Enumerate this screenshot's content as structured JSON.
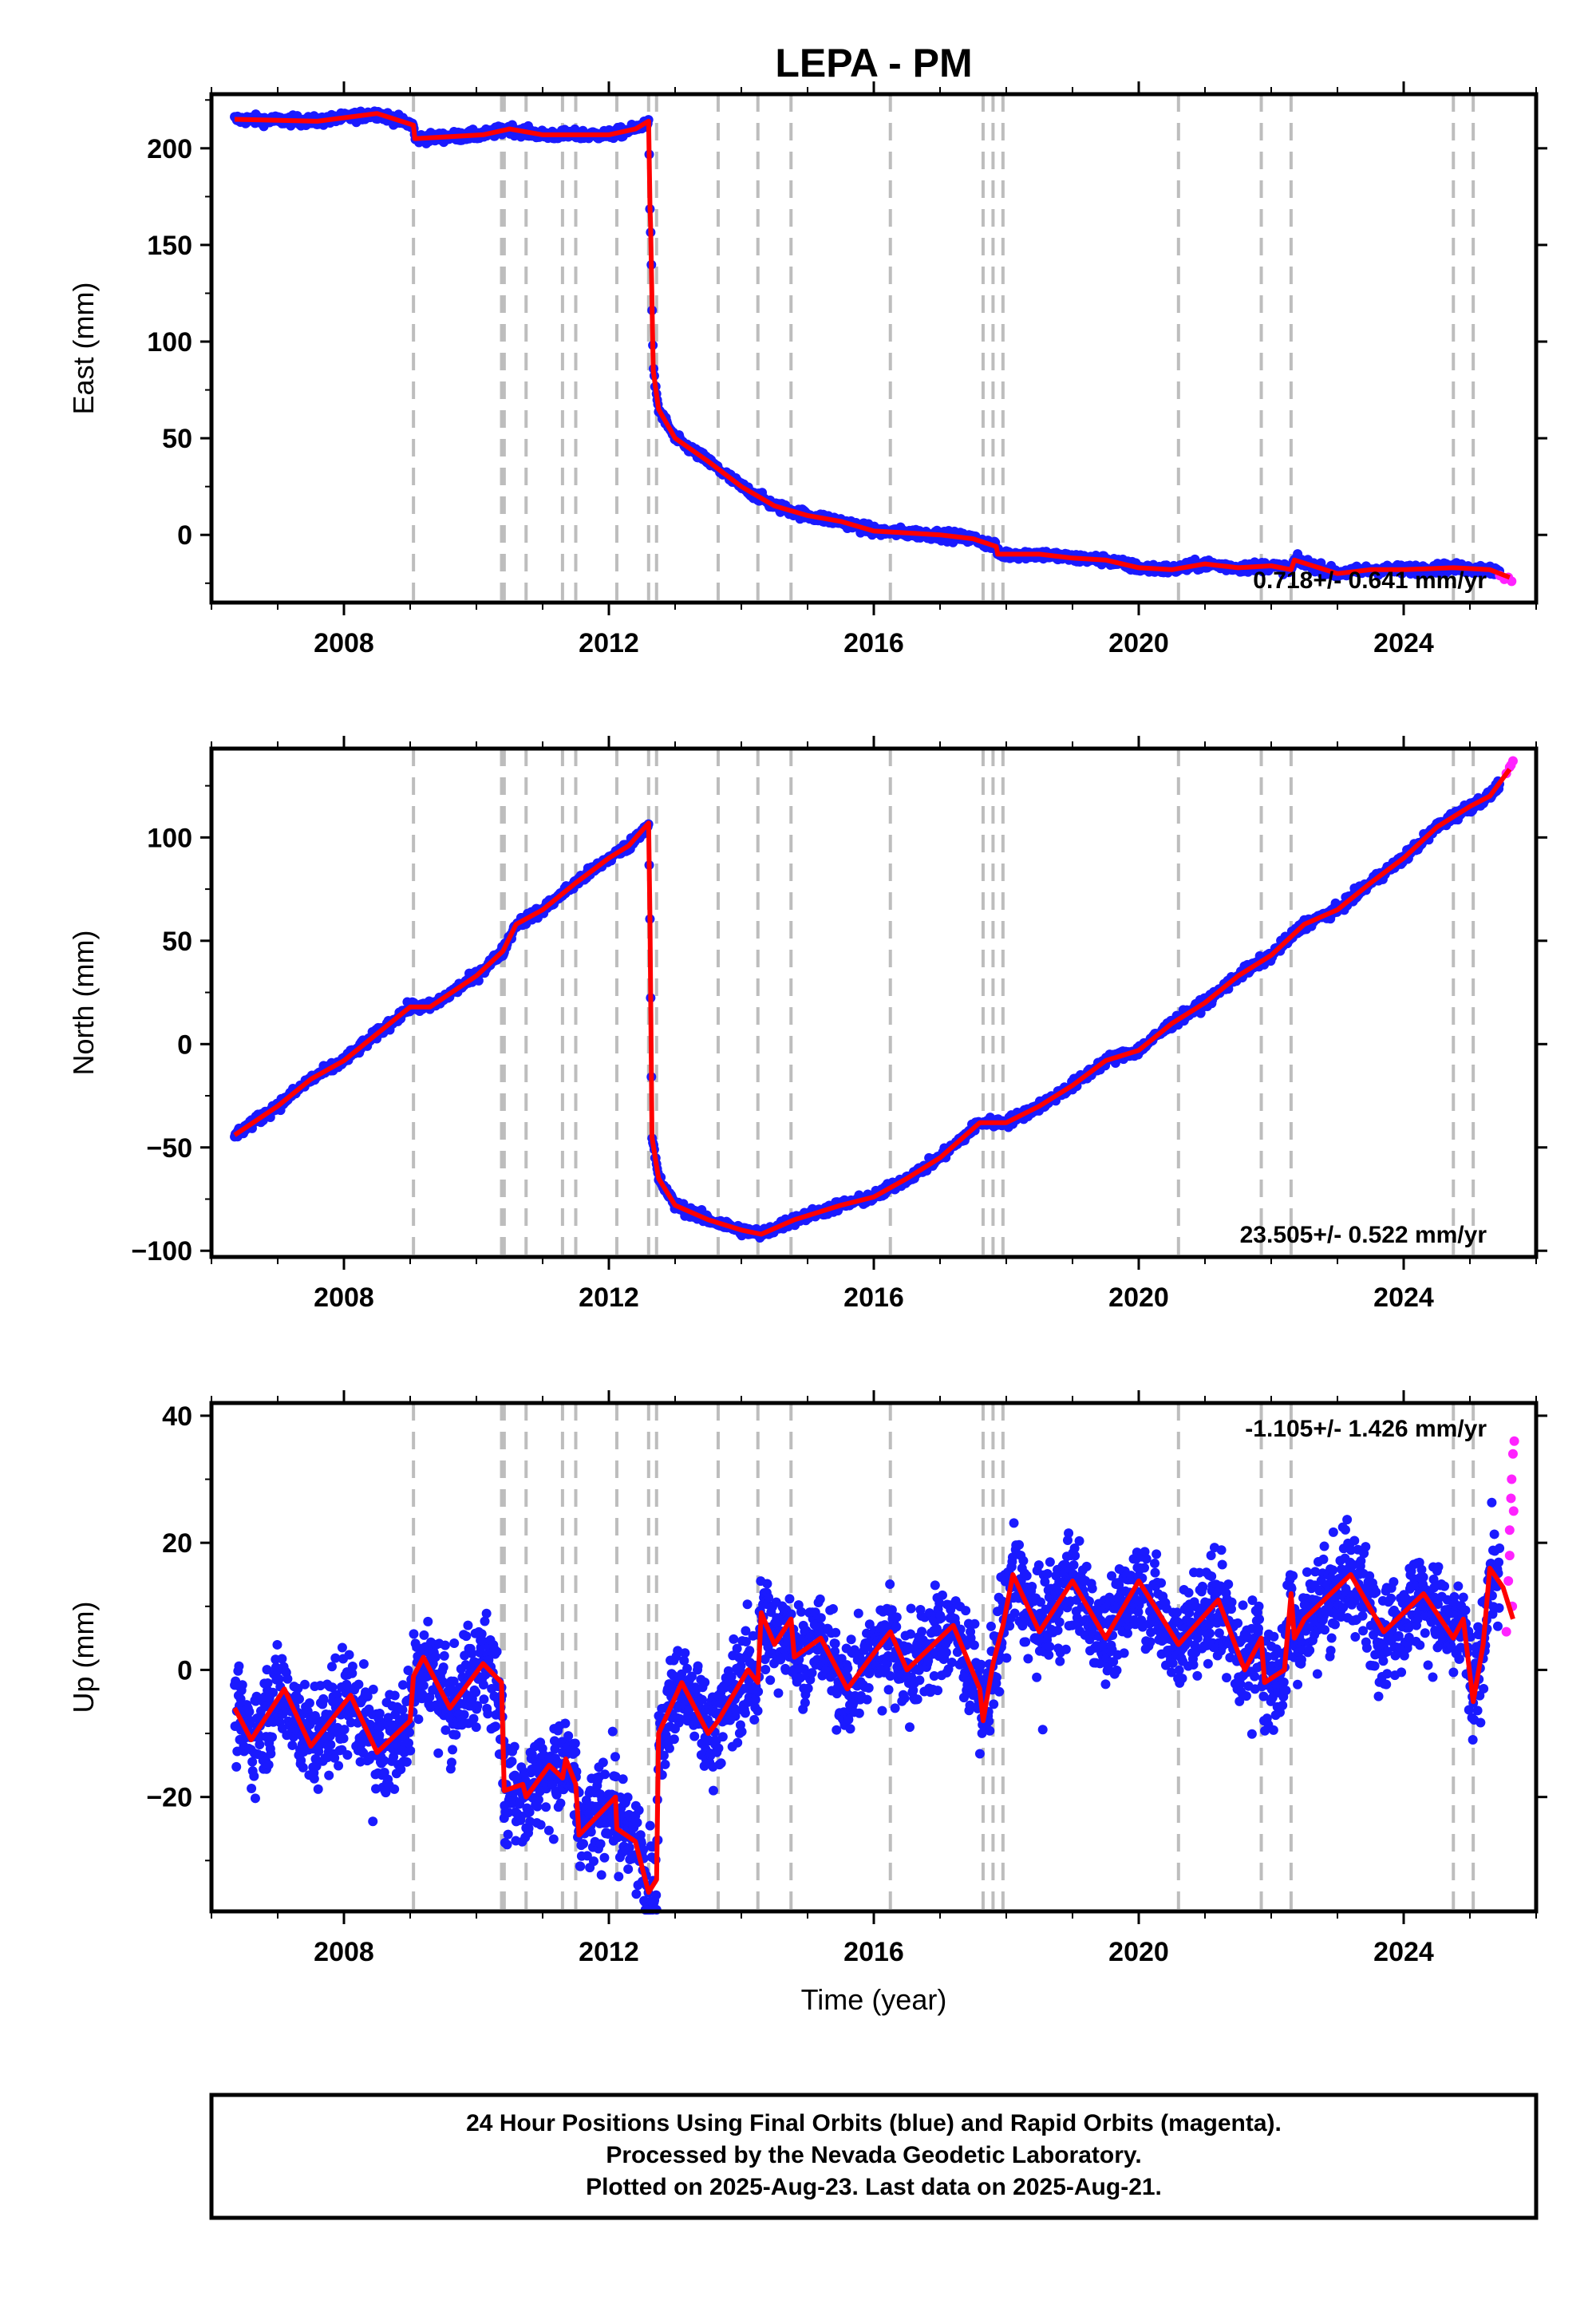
{
  "colors": {
    "final_orbits": "#1a1aff",
    "rapid_orbits": "#ff22ff",
    "model": "#ff0000",
    "event_lines": "#bdbdbd",
    "frame": "#000000"
  },
  "figure": {
    "title": "LEPA - PM",
    "x_axis_label": "Time (year)",
    "footer": [
      "24 Hour Positions Using Final Orbits (blue) and Rapid Orbits (magenta).",
      "Processed by the Nevada Geodetic Laboratory.",
      "Plotted on 2025-Aug-23. Last data on 2025-Aug-21."
    ]
  },
  "chart_data": [
    {
      "type": "scatter",
      "component": "east",
      "ylabel": "East (mm)",
      "rate_label": "0.718+/- 0.641 mm/yr",
      "xlim": [
        2006.0,
        2026.0
      ],
      "ylim": [
        -35,
        228
      ],
      "yticks": [
        0,
        50,
        100,
        150,
        200
      ],
      "xticks": [
        2008,
        2012,
        2016,
        2020,
        2024
      ],
      "event_lines_x": [
        2009.05,
        2010.38,
        2010.42,
        2010.75,
        2011.3,
        2011.5,
        2012.12,
        2012.6,
        2012.72,
        2013.65,
        2014.25,
        2014.75,
        2016.25,
        2017.65,
        2017.8,
        2017.95,
        2020.6,
        2021.85,
        2022.3,
        2024.75,
        2025.05
      ],
      "model_points": [
        [
          2006.35,
          215
        ],
        [
          2007.6,
          214
        ],
        [
          2008.5,
          218
        ],
        [
          2009.05,
          212
        ],
        [
          2009.07,
          205
        ],
        [
          2010.1,
          207
        ],
        [
          2010.5,
          210
        ],
        [
          2011.0,
          207
        ],
        [
          2012.0,
          207
        ],
        [
          2012.4,
          210
        ],
        [
          2012.6,
          214
        ],
        [
          2012.62,
          170
        ],
        [
          2012.63,
          160
        ],
        [
          2012.67,
          85
        ],
        [
          2012.75,
          65
        ],
        [
          2013.0,
          50
        ],
        [
          2013.5,
          38
        ],
        [
          2014.0,
          25
        ],
        [
          2014.5,
          15
        ],
        [
          2015.0,
          10
        ],
        [
          2015.5,
          7
        ],
        [
          2016.0,
          2
        ],
        [
          2016.5,
          1
        ],
        [
          2017.0,
          0
        ],
        [
          2017.5,
          -2
        ],
        [
          2017.85,
          -6
        ],
        [
          2017.87,
          -10
        ],
        [
          2018.5,
          -10
        ],
        [
          2019.0,
          -12
        ],
        [
          2019.5,
          -13
        ],
        [
          2020.0,
          -17
        ],
        [
          2020.5,
          -18
        ],
        [
          2021.0,
          -15
        ],
        [
          2021.5,
          -17
        ],
        [
          2022.0,
          -16
        ],
        [
          2022.3,
          -18
        ],
        [
          2022.35,
          -13
        ],
        [
          2023.0,
          -20
        ],
        [
          2023.5,
          -18
        ],
        [
          2024.0,
          -18
        ],
        [
          2024.75,
          -17
        ],
        [
          2025.3,
          -18
        ],
        [
          2025.6,
          -22
        ]
      ],
      "rapid_points": [
        [
          2025.45,
          -21
        ],
        [
          2025.52,
          -23
        ],
        [
          2025.58,
          -22
        ],
        [
          2025.63,
          -24
        ]
      ]
    },
    {
      "type": "scatter",
      "component": "north",
      "ylabel": "North (mm)",
      "rate_label": "23.505+/- 0.522 mm/yr",
      "xlim": [
        2006.0,
        2026.0
      ],
      "ylim": [
        -103,
        143
      ],
      "yticks": [
        -100,
        -50,
        0,
        50,
        100
      ],
      "xticks": [
        2008,
        2012,
        2016,
        2020,
        2024
      ],
      "event_lines_x": [
        2009.05,
        2010.38,
        2010.42,
        2010.75,
        2011.3,
        2011.5,
        2012.12,
        2012.6,
        2012.72,
        2013.65,
        2014.25,
        2014.75,
        2016.25,
        2017.65,
        2017.8,
        2017.95,
        2020.6,
        2021.85,
        2022.3,
        2024.75,
        2025.05
      ],
      "model_points": [
        [
          2006.35,
          -44
        ],
        [
          2007.0,
          -30
        ],
        [
          2007.5,
          -17
        ],
        [
          2008.0,
          -8
        ],
        [
          2008.5,
          5
        ],
        [
          2009.0,
          18
        ],
        [
          2009.3,
          18
        ],
        [
          2010.0,
          33
        ],
        [
          2010.4,
          45
        ],
        [
          2010.6,
          58
        ],
        [
          2011.0,
          65
        ],
        [
          2011.5,
          78
        ],
        [
          2012.0,
          90
        ],
        [
          2012.3,
          96
        ],
        [
          2012.6,
          107
        ],
        [
          2012.62,
          60
        ],
        [
          2012.65,
          -45
        ],
        [
          2012.75,
          -65
        ],
        [
          2013.0,
          -78
        ],
        [
          2013.5,
          -85
        ],
        [
          2014.0,
          -90
        ],
        [
          2014.3,
          -92
        ],
        [
          2014.8,
          -85
        ],
        [
          2015.5,
          -78
        ],
        [
          2016.0,
          -74
        ],
        [
          2016.5,
          -65
        ],
        [
          2017.0,
          -55
        ],
        [
          2017.6,
          -38
        ],
        [
          2018.0,
          -38
        ],
        [
          2018.5,
          -30
        ],
        [
          2019.0,
          -20
        ],
        [
          2019.5,
          -8
        ],
        [
          2020.0,
          -3
        ],
        [
          2020.5,
          10
        ],
        [
          2021.0,
          20
        ],
        [
          2021.5,
          33
        ],
        [
          2022.0,
          43
        ],
        [
          2022.5,
          58
        ],
        [
          2023.0,
          65
        ],
        [
          2023.5,
          78
        ],
        [
          2024.0,
          90
        ],
        [
          2024.5,
          105
        ],
        [
          2025.0,
          115
        ],
        [
          2025.3,
          120
        ],
        [
          2025.6,
          133
        ]
      ],
      "rapid_points": [
        [
          2025.55,
          131
        ],
        [
          2025.6,
          134
        ],
        [
          2025.65,
          137
        ],
        [
          2025.62,
          135
        ]
      ]
    },
    {
      "type": "scatter",
      "component": "up",
      "ylabel": "Up (mm)",
      "rate_label": "-1.105+/- 1.426 mm/yr",
      "xlim": [
        2006.0,
        2026.0
      ],
      "ylim": [
        -38,
        42
      ],
      "yticks": [
        -20,
        0,
        20,
        40
      ],
      "xticks": [
        2008,
        2012,
        2016,
        2020,
        2024
      ],
      "event_lines_x": [
        2009.05,
        2010.38,
        2010.42,
        2010.75,
        2011.3,
        2011.5,
        2012.12,
        2012.6,
        2012.72,
        2013.65,
        2014.25,
        2014.75,
        2016.25,
        2017.65,
        2017.8,
        2017.95,
        2020.6,
        2021.85,
        2022.3,
        2024.75,
        2025.05
      ],
      "model_points": [
        [
          2006.35,
          -6
        ],
        [
          2006.6,
          -11
        ],
        [
          2007.1,
          -3
        ],
        [
          2007.5,
          -12
        ],
        [
          2008.1,
          -4
        ],
        [
          2008.5,
          -13
        ],
        [
          2009.0,
          -8
        ],
        [
          2009.05,
          -1
        ],
        [
          2009.2,
          2
        ],
        [
          2009.6,
          -6
        ],
        [
          2010.1,
          1
        ],
        [
          2010.38,
          -2
        ],
        [
          2010.42,
          -19
        ],
        [
          2010.7,
          -18
        ],
        [
          2010.75,
          -20
        ],
        [
          2011.1,
          -15
        ],
        [
          2011.3,
          -17
        ],
        [
          2011.35,
          -14
        ],
        [
          2011.5,
          -18
        ],
        [
          2011.55,
          -26
        ],
        [
          2012.1,
          -20
        ],
        [
          2012.12,
          -25
        ],
        [
          2012.4,
          -27
        ],
        [
          2012.6,
          -35
        ],
        [
          2012.72,
          -33
        ],
        [
          2012.75,
          -10
        ],
        [
          2013.1,
          -2
        ],
        [
          2013.5,
          -10
        ],
        [
          2013.65,
          -8
        ],
        [
          2014.1,
          0
        ],
        [
          2014.25,
          -2
        ],
        [
          2014.3,
          9
        ],
        [
          2014.5,
          4
        ],
        [
          2014.75,
          8
        ],
        [
          2014.8,
          2
        ],
        [
          2015.2,
          5
        ],
        [
          2015.6,
          -3
        ],
        [
          2016.1,
          4
        ],
        [
          2016.25,
          6
        ],
        [
          2016.5,
          0
        ],
        [
          2017.2,
          7
        ],
        [
          2017.6,
          -3
        ],
        [
          2017.65,
          -8
        ],
        [
          2017.8,
          1
        ],
        [
          2017.95,
          7
        ],
        [
          2018.1,
          15
        ],
        [
          2018.5,
          6
        ],
        [
          2019.0,
          14
        ],
        [
          2019.5,
          5
        ],
        [
          2020.0,
          14
        ],
        [
          2020.6,
          4
        ],
        [
          2021.2,
          11
        ],
        [
          2021.6,
          0
        ],
        [
          2021.85,
          5
        ],
        [
          2021.9,
          -2
        ],
        [
          2022.2,
          0
        ],
        [
          2022.3,
          12
        ],
        [
          2022.35,
          5
        ],
        [
          2022.5,
          8
        ],
        [
          2023.2,
          15
        ],
        [
          2023.7,
          6
        ],
        [
          2024.3,
          12
        ],
        [
          2024.75,
          5
        ],
        [
          2024.9,
          8
        ],
        [
          2025.05,
          -5
        ],
        [
          2025.2,
          4
        ],
        [
          2025.3,
          16
        ],
        [
          2025.5,
          13
        ],
        [
          2025.65,
          8
        ]
      ],
      "rapid_points": [
        [
          2025.55,
          6
        ],
        [
          2025.58,
          14
        ],
        [
          2025.6,
          22
        ],
        [
          2025.62,
          27
        ],
        [
          2025.63,
          30
        ],
        [
          2025.65,
          34
        ],
        [
          2025.6,
          18
        ],
        [
          2025.66,
          25
        ],
        [
          2025.64,
          10
        ],
        [
          2025.67,
          36
        ]
      ]
    }
  ]
}
